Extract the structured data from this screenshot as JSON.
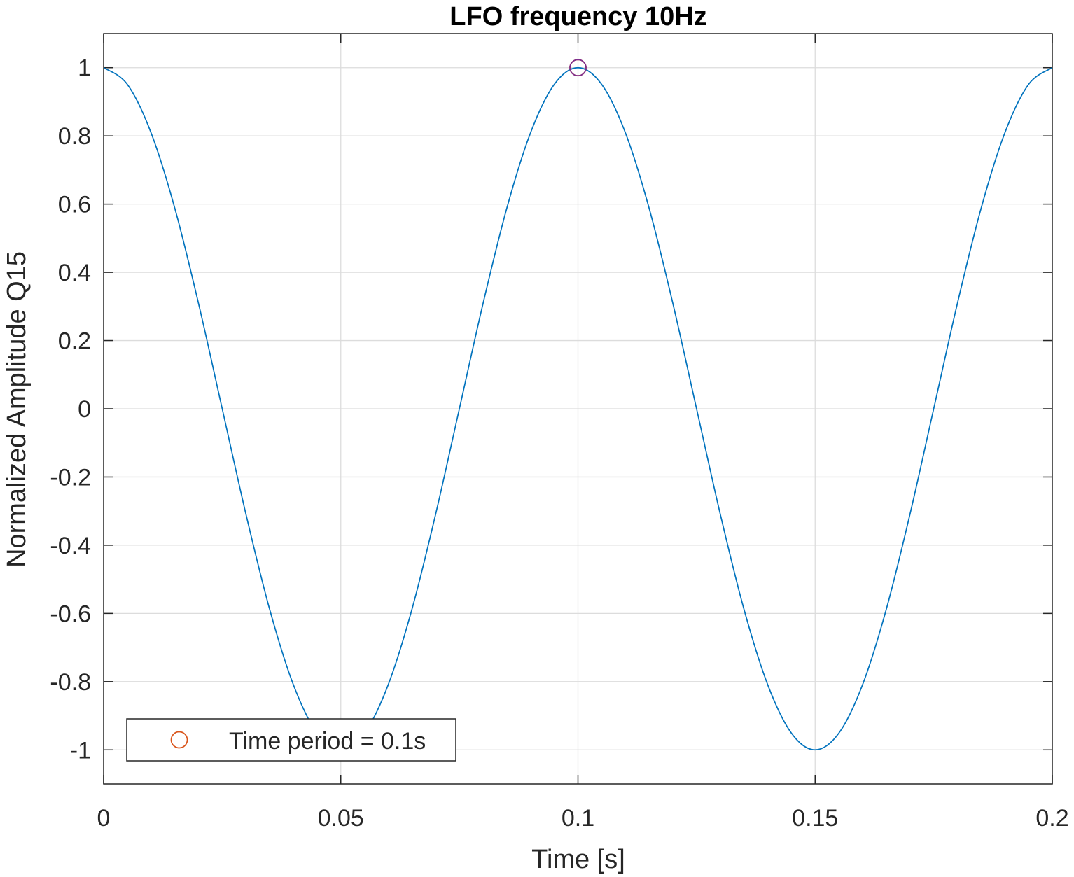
{
  "chart_data": {
    "type": "line",
    "title": "LFO frequency 10Hz",
    "xlabel": "Time [s]",
    "ylabel": "Normalized Amplitude Q15",
    "xlim": [
      0,
      0.2
    ],
    "ylim": [
      -1.1,
      1.1
    ],
    "x_ticks": [
      0,
      0.05,
      0.1,
      0.15,
      0.2
    ],
    "x_tick_labels": [
      "0",
      "0.05",
      "0.1",
      "0.15",
      "0.2"
    ],
    "y_ticks": [
      1,
      0.8,
      0.6,
      0.4,
      0.2,
      0,
      -0.2,
      -0.4,
      -0.6,
      -0.8,
      -1
    ],
    "y_tick_labels": [
      "1",
      "0.8",
      "0.6",
      "0.4",
      "0.2",
      "0",
      "-0.2",
      "-0.4",
      "-0.6",
      "-0.8",
      "-1"
    ],
    "grid": true,
    "legend_position": "bottom-left",
    "series": [
      {
        "kind": "line",
        "color": "#0072bd",
        "x": [
          0,
          0.005,
          0.01,
          0.015,
          0.02,
          0.025,
          0.03,
          0.035,
          0.04,
          0.045,
          0.05,
          0.055,
          0.06,
          0.065,
          0.07,
          0.075,
          0.08,
          0.085,
          0.09,
          0.095,
          0.1,
          0.105,
          0.11,
          0.115,
          0.12,
          0.125,
          0.13,
          0.135,
          0.14,
          0.145,
          0.15,
          0.155,
          0.16,
          0.165,
          0.17,
          0.175,
          0.18,
          0.185,
          0.19,
          0.195,
          0.2
        ],
        "y": [
          1,
          0.951,
          0.809,
          0.588,
          0.309,
          0,
          -0.309,
          -0.588,
          -0.809,
          -0.951,
          -1,
          -0.951,
          -0.809,
          -0.588,
          -0.309,
          0,
          0.309,
          0.588,
          0.809,
          0.951,
          1,
          0.951,
          0.809,
          0.588,
          0.309,
          0,
          -0.309,
          -0.588,
          -0.809,
          -0.951,
          -1,
          -0.951,
          -0.809,
          -0.588,
          -0.309,
          0,
          0.309,
          0.588,
          0.809,
          0.951,
          1
        ]
      },
      {
        "name": "Time period = 0.1s",
        "kind": "marker",
        "marker": "circle",
        "color": "#d95319",
        "x": [
          0.1
        ],
        "y": [
          1
        ]
      }
    ],
    "marker_overlay_color": "#7e2f8e"
  }
}
